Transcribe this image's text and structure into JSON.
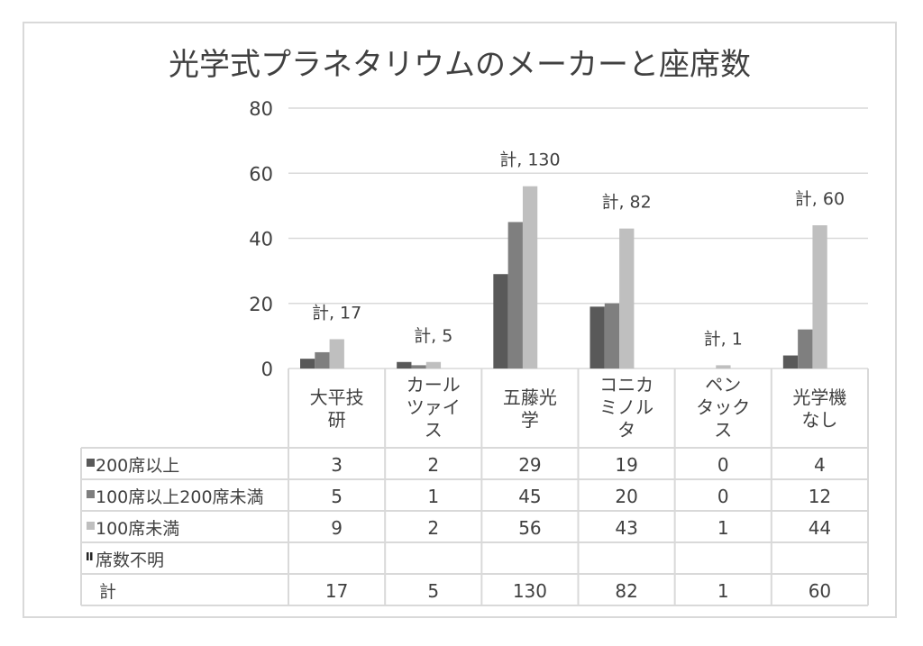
{
  "chart_data": {
    "type": "bar",
    "title": "光学式プラネタリウムのメーカーと座席数",
    "xlabel": "",
    "ylabel": "",
    "ylim": [
      0,
      80
    ],
    "yticks": [
      "0",
      "20",
      "40",
      "60",
      "80"
    ],
    "grid": true,
    "legend": "data-table-left",
    "categories": [
      "大平技研",
      "カールツァイス",
      "五藤光学",
      "コニカミノルタ",
      "ペンタックス",
      "光学機なし"
    ],
    "series": [
      {
        "name": "200席以上",
        "color": "#595959",
        "values": [
          3,
          2,
          29,
          19,
          0,
          4
        ]
      },
      {
        "name": "100席以上200席未満",
        "color": "#7f7f7f",
        "values": [
          5,
          1,
          45,
          20,
          0,
          12
        ]
      },
      {
        "name": "100席未満",
        "color": "#bfbfbf",
        "values": [
          9,
          2,
          56,
          43,
          1,
          44
        ]
      },
      {
        "name": "席数不明",
        "color": "#262626",
        "values": [
          null,
          null,
          null,
          null,
          null,
          null
        ]
      }
    ],
    "total": {
      "name": "計",
      "values": [
        17,
        5,
        130,
        82,
        1,
        60
      ]
    },
    "total_labels": [
      "計, 17",
      "計, 5",
      "計, 130",
      "計, 82",
      "計, 1",
      "計, 60"
    ]
  }
}
